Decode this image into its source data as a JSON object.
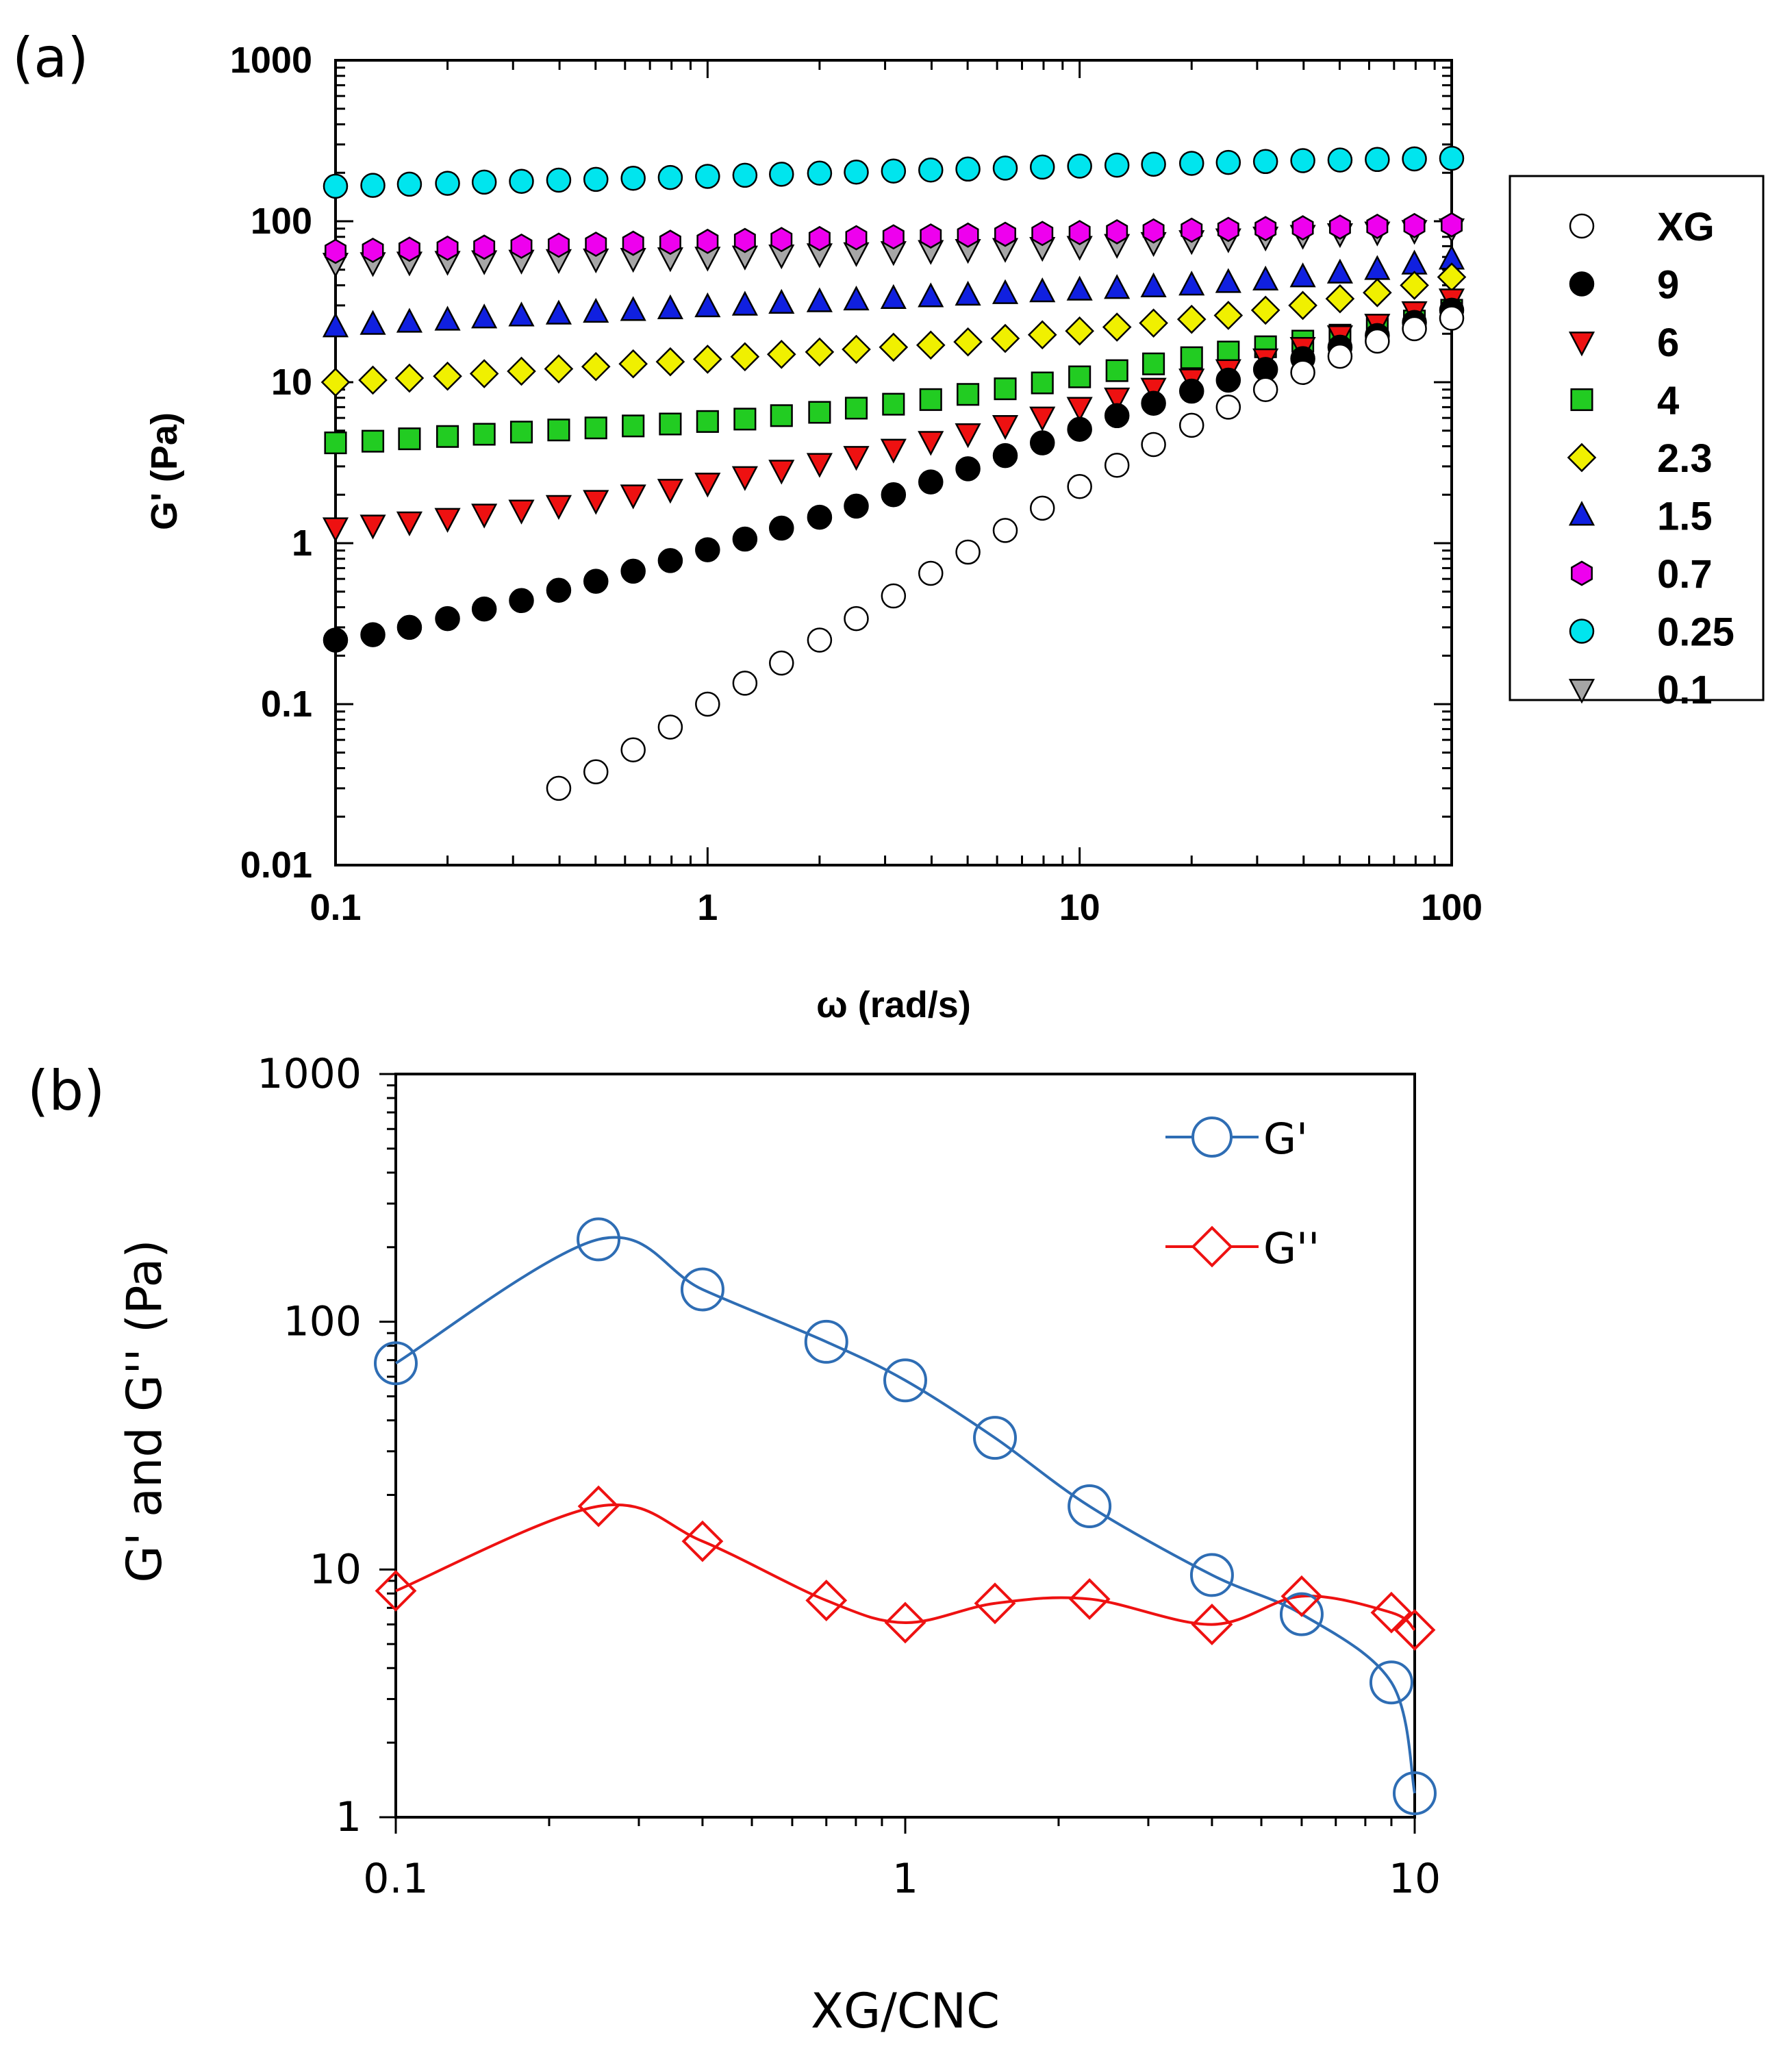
{
  "figure": {
    "panel_a_label": "(a)",
    "panel_b_label": "(b)"
  },
  "chart_data": [
    {
      "id": "a",
      "type": "scatter",
      "title": "",
      "xlabel": "ω (rad/s)",
      "ylabel": "G' (Pa)",
      "xscale": "log",
      "yscale": "log",
      "xlim": [
        0.1,
        100
      ],
      "ylim": [
        0.01,
        1000
      ],
      "x_ticks": [
        "0.1",
        "1",
        "10",
        "100"
      ],
      "y_ticks": [
        "0.01",
        "0.1",
        "1",
        "10",
        "100",
        "1000"
      ],
      "legend_position": "right-outside",
      "omega": [
        0.1,
        0.126,
        0.158,
        0.2,
        0.251,
        0.316,
        0.398,
        0.501,
        0.631,
        0.794,
        1.0,
        1.26,
        1.58,
        2.0,
        2.51,
        3.16,
        3.98,
        5.01,
        6.31,
        7.94,
        10.0,
        12.6,
        15.8,
        20.0,
        25.1,
        31.6,
        39.8,
        50.1,
        63.1,
        79.4,
        100.0
      ],
      "series": [
        {
          "name": "0.1",
          "marker": "triangle-down",
          "color": "#a6a6a6",
          "values": [
            55,
            55.5,
            56,
            56.5,
            57,
            57.5,
            58,
            58.5,
            59,
            59.5,
            60,
            61,
            62,
            63,
            64,
            65,
            66,
            67,
            68,
            69,
            70,
            72,
            74,
            76,
            78,
            80,
            82,
            84,
            86,
            88,
            90
          ]
        },
        {
          "name": "0.25",
          "marker": "circle",
          "color": "#00e5ee",
          "values": [
            165,
            167,
            170,
            172,
            175,
            177,
            180,
            182,
            185,
            187,
            190,
            193,
            196,
            199,
            202,
            205,
            208,
            211,
            214,
            217,
            220,
            223,
            226,
            229,
            232,
            235,
            238,
            240,
            242,
            244,
            246
          ]
        },
        {
          "name": "0.7",
          "marker": "hexagon",
          "color": "#ee00ee",
          "values": [
            65,
            66,
            67,
            68,
            69,
            70,
            71,
            72,
            73,
            74,
            75,
            76,
            77,
            78,
            79,
            80,
            81,
            82,
            83,
            84,
            85,
            86,
            87,
            88,
            89,
            90,
            91,
            92,
            93,
            94,
            95
          ]
        },
        {
          "name": "1.5",
          "marker": "triangle-up",
          "color": "#1020e0",
          "values": [
            22,
            22.8,
            23.5,
            24.2,
            25,
            25.7,
            26.4,
            27.1,
            27.8,
            28.5,
            29.3,
            30,
            30.8,
            31.5,
            32.3,
            33,
            33.8,
            34.6,
            35.4,
            36.3,
            37.2,
            38.1,
            39,
            40,
            41.5,
            43,
            45,
            47.5,
            50,
            54,
            58
          ]
        },
        {
          "name": "2.3",
          "marker": "diamond",
          "color": "#f0f000",
          "values": [
            10,
            10.3,
            10.6,
            10.9,
            11.3,
            11.7,
            12.1,
            12.5,
            13,
            13.4,
            13.9,
            14.4,
            14.9,
            15.4,
            16,
            16.5,
            17,
            17.8,
            18.7,
            19.7,
            20.8,
            22,
            23.3,
            24.6,
            26,
            28,
            30,
            33,
            36,
            40,
            45
          ]
        },
        {
          "name": "4",
          "marker": "square",
          "color": "#22cc22",
          "values": [
            4.2,
            4.3,
            4.45,
            4.6,
            4.75,
            4.9,
            5.05,
            5.2,
            5.35,
            5.5,
            5.7,
            5.9,
            6.2,
            6.5,
            6.9,
            7.3,
            7.8,
            8.4,
            9.1,
            9.9,
            10.8,
            11.8,
            13,
            14.2,
            15.4,
            16.6,
            18,
            19.6,
            21.5,
            24,
            28
          ]
        },
        {
          "name": "6",
          "marker": "triangle-down",
          "color": "#ee1111",
          "values": [
            1.25,
            1.3,
            1.36,
            1.43,
            1.52,
            1.61,
            1.72,
            1.85,
            2.0,
            2.17,
            2.37,
            2.6,
            2.85,
            3.14,
            3.47,
            3.85,
            4.3,
            4.8,
            5.4,
            6.1,
            7.0,
            8.0,
            9.2,
            10.5,
            12,
            14,
            16.5,
            19.5,
            23,
            27.5,
            33
          ]
        },
        {
          "name": "9",
          "marker": "circle",
          "color": "#000000",
          "values": [
            0.25,
            0.27,
            0.3,
            0.34,
            0.39,
            0.44,
            0.51,
            0.58,
            0.67,
            0.78,
            0.91,
            1.06,
            1.24,
            1.45,
            1.7,
            2.0,
            2.4,
            2.9,
            3.5,
            4.2,
            5.1,
            6.2,
            7.4,
            8.8,
            10.3,
            12,
            14,
            16.5,
            19.5,
            23.5,
            28
          ]
        },
        {
          "name": "XG",
          "marker": "circle-open",
          "color": "#ffffff",
          "values": [
            null,
            null,
            null,
            null,
            null,
            null,
            0.03,
            0.038,
            0.052,
            0.072,
            0.1,
            0.135,
            0.18,
            0.25,
            0.34,
            0.47,
            0.65,
            0.88,
            1.2,
            1.65,
            2.25,
            3.05,
            4.1,
            5.4,
            7.0,
            9.0,
            11.5,
            14.5,
            18,
            21.5,
            25
          ]
        }
      ],
      "legend": [
        {
          "name": "XG",
          "marker": "circle-open",
          "color": "#ffffff"
        },
        {
          "name": "9",
          "marker": "circle",
          "color": "#000000"
        },
        {
          "name": "6",
          "marker": "triangle-down",
          "color": "#ee1111"
        },
        {
          "name": "4",
          "marker": "square",
          "color": "#22cc22"
        },
        {
          "name": "2.3",
          "marker": "diamond",
          "color": "#f0f000"
        },
        {
          "name": "1.5",
          "marker": "triangle-up",
          "color": "#1020e0"
        },
        {
          "name": "0.7",
          "marker": "hexagon",
          "color": "#ee00ee"
        },
        {
          "name": "0.25",
          "marker": "circle",
          "color": "#00e5ee"
        },
        {
          "name": "0.1",
          "marker": "triangle-down",
          "color": "#a6a6a6"
        }
      ]
    },
    {
      "id": "b",
      "type": "line",
      "title": "",
      "xlabel": "XG/CNC",
      "ylabel": "G' and G'' (Pa)",
      "xscale": "log",
      "yscale": "log",
      "xlim": [
        0.1,
        10
      ],
      "ylim": [
        1,
        1000
      ],
      "x_ticks": [
        "0.1",
        "1",
        "10"
      ],
      "y_ticks": [
        "1",
        "10",
        "100",
        "1000"
      ],
      "legend_position": "top-right",
      "x": [
        0.1,
        0.25,
        0.4,
        0.7,
        1.0,
        1.5,
        2.3,
        4.0,
        6.0,
        9.0,
        10.0
      ],
      "series": [
        {
          "name": "G'",
          "marker": "circle-open",
          "color": "#2e6db4",
          "values": [
            68,
            215,
            135,
            83,
            58,
            34,
            18,
            9.5,
            6.6,
            3.5,
            1.25
          ]
        },
        {
          "name": "G''",
          "marker": "diamond-open",
          "color": "#ee1111",
          "values": [
            8.2,
            18,
            13,
            7.5,
            6.1,
            7.3,
            7.6,
            6.0,
            7.8,
            6.7,
            5.7
          ]
        }
      ]
    }
  ]
}
